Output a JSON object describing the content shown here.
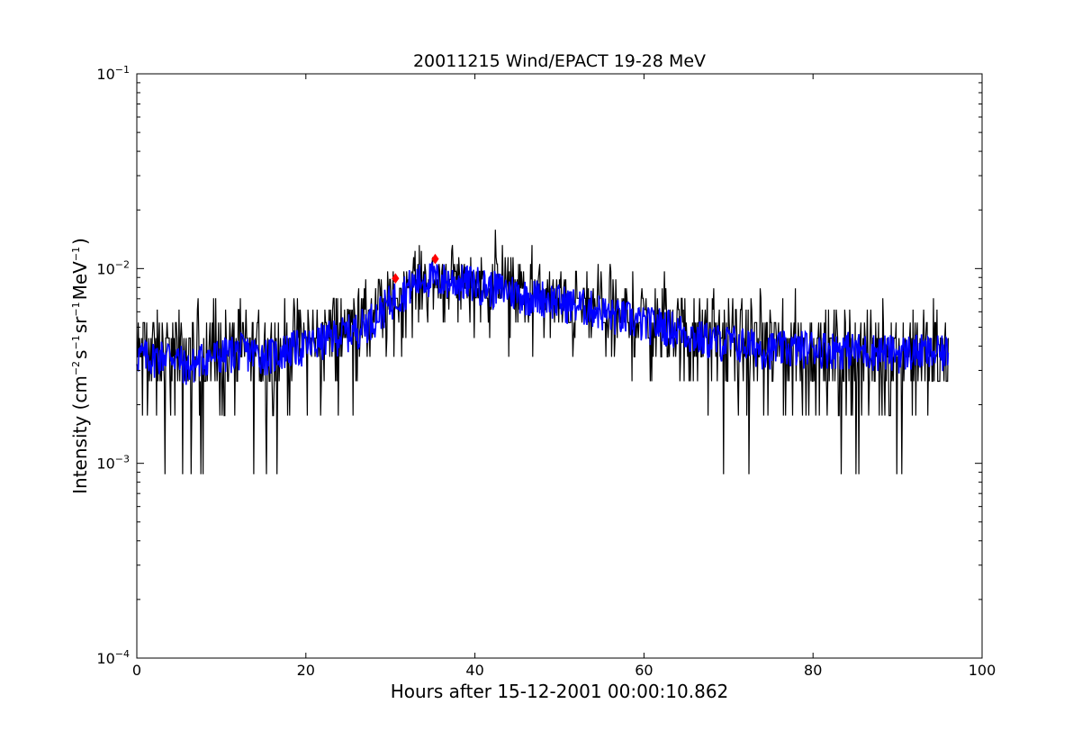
{
  "chart_data": {
    "type": "line",
    "title": "20011215 Wind/EPACT 19-28 MeV",
    "xlabel": "Hours after 15-12-2001 00:00:10.862",
    "ylabel": {
      "base": "Intensity (cm",
      "exp1": "−2",
      "part2": "s",
      "exp2": "−1",
      "part3": "sr",
      "exp3": "−1",
      "part4": "MeV",
      "exp4": "−1",
      "end": ")"
    },
    "xlim": [
      0,
      100
    ],
    "ylim": [
      0.0001,
      0.1
    ],
    "yscale": "log",
    "x_ticks": [
      "0",
      "20",
      "40",
      "60",
      "80",
      "100"
    ],
    "y_ticks": [
      {
        "base": "10",
        "exp": "−4"
      },
      {
        "base": "10",
        "exp": "−3"
      },
      {
        "base": "10",
        "exp": "−2"
      },
      {
        "base": "10",
        "exp": "−1"
      }
    ],
    "grid": false,
    "series": [
      {
        "role": "raw intensity",
        "color": "#000000",
        "x_range": [
          0,
          96
        ],
        "baseline_profile": [
          [
            0,
            0.0036
          ],
          [
            10,
            0.0036
          ],
          [
            20,
            0.0042
          ],
          [
            28,
            0.0056
          ],
          [
            33,
            0.0088
          ],
          [
            37,
            0.009
          ],
          [
            42,
            0.0082
          ],
          [
            50,
            0.0068
          ],
          [
            60,
            0.0054
          ],
          [
            70,
            0.0043
          ],
          [
            80,
            0.0038
          ],
          [
            96,
            0.0036
          ]
        ],
        "min": 0.00088,
        "max": 0.017
      },
      {
        "role": "smoothed intensity",
        "color": "#0000ff",
        "x": [
          0,
          2,
          4,
          6,
          8,
          10,
          12,
          14,
          16,
          18,
          20,
          22,
          24,
          26,
          28,
          30,
          32,
          34,
          36,
          38,
          40,
          42,
          44,
          46,
          48,
          50,
          52,
          54,
          56,
          58,
          60,
          62,
          64,
          66,
          68,
          70,
          72,
          74,
          76,
          78,
          80,
          82,
          84,
          86,
          88,
          90,
          92,
          94,
          96
        ],
        "y": [
          0.0036,
          0.0035,
          0.0037,
          0.0031,
          0.0035,
          0.0036,
          0.0038,
          0.0037,
          0.0036,
          0.0039,
          0.004,
          0.0043,
          0.0046,
          0.0049,
          0.0056,
          0.0068,
          0.008,
          0.009,
          0.0088,
          0.0086,
          0.0085,
          0.008,
          0.0078,
          0.0073,
          0.0072,
          0.0068,
          0.0065,
          0.0063,
          0.0058,
          0.0056,
          0.0052,
          0.0052,
          0.0049,
          0.0045,
          0.0043,
          0.0042,
          0.0041,
          0.0039,
          0.0039,
          0.0039,
          0.004,
          0.0039,
          0.0039,
          0.0038,
          0.0038,
          0.0037,
          0.0038,
          0.0037,
          0.0037
        ]
      }
    ],
    "markers": [
      {
        "x": 30.6,
        "y": 0.0089,
        "shape": "diamond",
        "color": "#ff0000"
      },
      {
        "x": 35.3,
        "y": 0.0112,
        "shape": "diamond",
        "color": "#ff0000"
      }
    ]
  }
}
